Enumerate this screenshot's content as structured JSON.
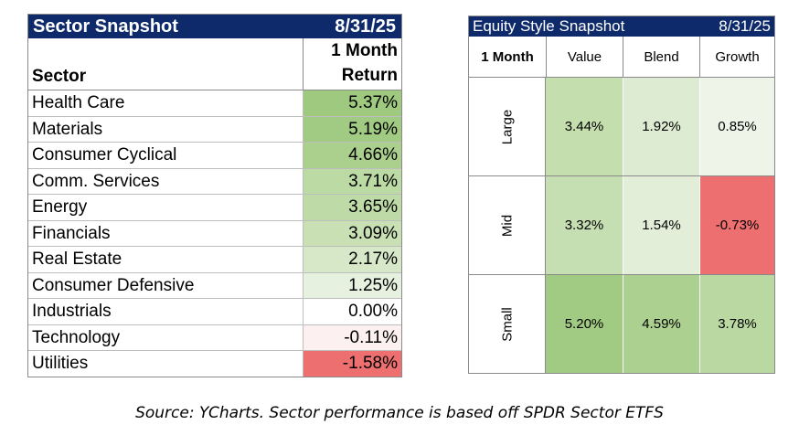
{
  "sector": {
    "title": "Sector Snapshot",
    "date": "8/31/25",
    "col_sector": "Sector",
    "col_return_line1": "1 Month",
    "col_return_line2": "Return",
    "rows": [
      {
        "name": "Health Care",
        "value": "5.37%",
        "color": "#9ec97f"
      },
      {
        "name": "Materials",
        "value": "5.19%",
        "color": "#a1ca82"
      },
      {
        "name": "Consumer Cyclical",
        "value": "4.66%",
        "color": "#abd08e"
      },
      {
        "name": "Comm. Services",
        "value": "3.71%",
        "color": "#bcdaa4"
      },
      {
        "name": "Energy",
        "value": "3.65%",
        "color": "#bedba7"
      },
      {
        "name": "Financials",
        "value": "3.09%",
        "color": "#c8e0b4"
      },
      {
        "name": "Real Estate",
        "value": "2.17%",
        "color": "#d7e8c9"
      },
      {
        "name": "Consumer Defensive",
        "value": "1.25%",
        "color": "#e7f1df"
      },
      {
        "name": "Industrials",
        "value": "0.00%",
        "color": "#ffffff"
      },
      {
        "name": "Technology",
        "value": "-0.11%",
        "color": "#fdf0f0"
      },
      {
        "name": "Utilities",
        "value": "-1.58%",
        "color": "#ed6f6f"
      }
    ]
  },
  "style_box": {
    "title": "Equity Style Snapshot",
    "date": "8/31/25",
    "corner": "1 Month",
    "columns": [
      "Value",
      "Blend",
      "Growth"
    ],
    "rows": [
      {
        "label": "Large",
        "cells": [
          {
            "value": "3.44%",
            "color": "#c4deae"
          },
          {
            "value": "1.92%",
            "color": "#dcebd1"
          },
          {
            "value": "0.85%",
            "color": "#eef5e8"
          }
        ]
      },
      {
        "label": "Mid",
        "cells": [
          {
            "value": "3.32%",
            "color": "#c6dfb2"
          },
          {
            "value": "1.54%",
            "color": "#e2eed8"
          },
          {
            "value": "-0.73%",
            "color": "#ed6f6f"
          }
        ]
      },
      {
        "label": "Small",
        "cells": [
          {
            "value": "5.20%",
            "color": "#a1ca82"
          },
          {
            "value": "4.59%",
            "color": "#acd08f"
          },
          {
            "value": "3.78%",
            "color": "#bad9a2"
          }
        ]
      }
    ]
  },
  "source": "Source: YCharts. Sector performance is based off SPDR Sector ETFS"
}
